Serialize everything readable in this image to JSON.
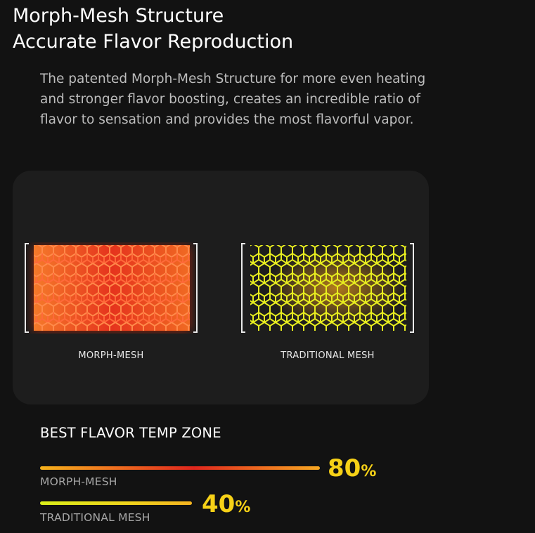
{
  "header": {
    "title_line1": "Morph-Mesh Structure",
    "title_line2": "Accurate Flavor Reproduction"
  },
  "description": "The patented Morph-Mesh Structure for more even heating and stronger flavor boosting, creates an incredible ratio of flavor to sensation and provides the most flavorful vapor.",
  "comparison": {
    "morph_caption": "MORPH-MESH",
    "traditional_caption": "TRADITIONAL MESH",
    "morph_icon": "red-hot-mesh-icon",
    "traditional_icon": "yellow-mesh-icon"
  },
  "temp_zone": {
    "title": "BEST FLAVOR TEMP ZONE",
    "items": [
      {
        "label": "MORPH-MESH",
        "value": "80",
        "unit": "%",
        "fraction": 0.8
      },
      {
        "label": "TRADITIONAL MESH",
        "value": "40",
        "unit": "%",
        "fraction": 0.4
      }
    ]
  },
  "colors": {
    "background": "#121212",
    "card": "#1d1d1d",
    "accent_yellow": "#f6d117",
    "hot_red": "#e0261d",
    "mesh_yellow": "#e3e61a"
  }
}
